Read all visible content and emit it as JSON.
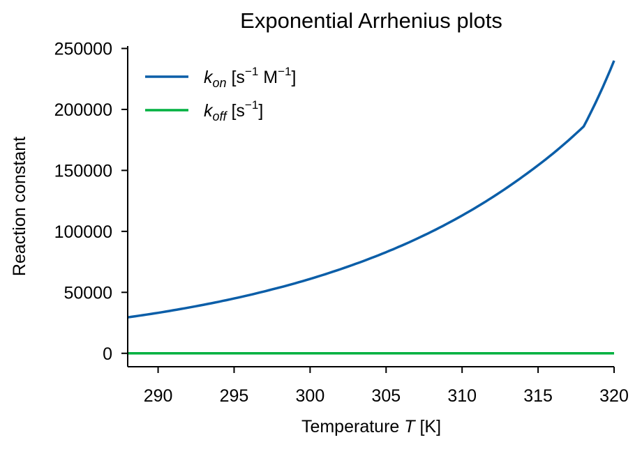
{
  "chart_data": {
    "type": "line",
    "title": "Exponential Arrhenius plots",
    "xlabel": "Temperature T [K]",
    "xlabel_parts": {
      "prefix": "Temperature ",
      "var": "T",
      "suffix": " [K]"
    },
    "ylabel": "Reaction constant",
    "xlim": [
      288,
      320
    ],
    "ylim": [
      -11000,
      252000
    ],
    "xticks": [
      290,
      295,
      300,
      305,
      310,
      315,
      320
    ],
    "yticks": [
      0,
      50000,
      100000,
      150000,
      200000,
      250000
    ],
    "grid": false,
    "legend_position": "top-left",
    "series": [
      {
        "name": "k_on [s^-1 M^-1]",
        "legend": {
          "sym": "k",
          "sub": "on",
          "unit_open": " [s",
          "sup1": "−1",
          "unit_mid": " M",
          "sup2": "−1",
          "unit_close": "]"
        },
        "color": "#0b5ea8",
        "x": [
          288,
          290,
          292,
          294,
          296,
          298,
          300,
          302,
          304,
          306,
          308,
          310,
          312,
          314,
          316,
          318,
          320
        ],
        "y": [
          29500,
          33200,
          37500,
          42300,
          47800,
          54000,
          61000,
          69000,
          78000,
          88200,
          99800,
          113000,
          128000,
          145000,
          164000,
          186000,
          240000
        ]
      },
      {
        "name": "k_off [s^-1]",
        "legend": {
          "sym": "k",
          "sub": "off",
          "unit_open": " [s",
          "sup1": "−1",
          "unit_mid": "",
          "sup2": "",
          "unit_close": "]"
        },
        "color": "#00b140",
        "x": [
          288,
          320
        ],
        "y": [
          0,
          0
        ]
      }
    ]
  }
}
